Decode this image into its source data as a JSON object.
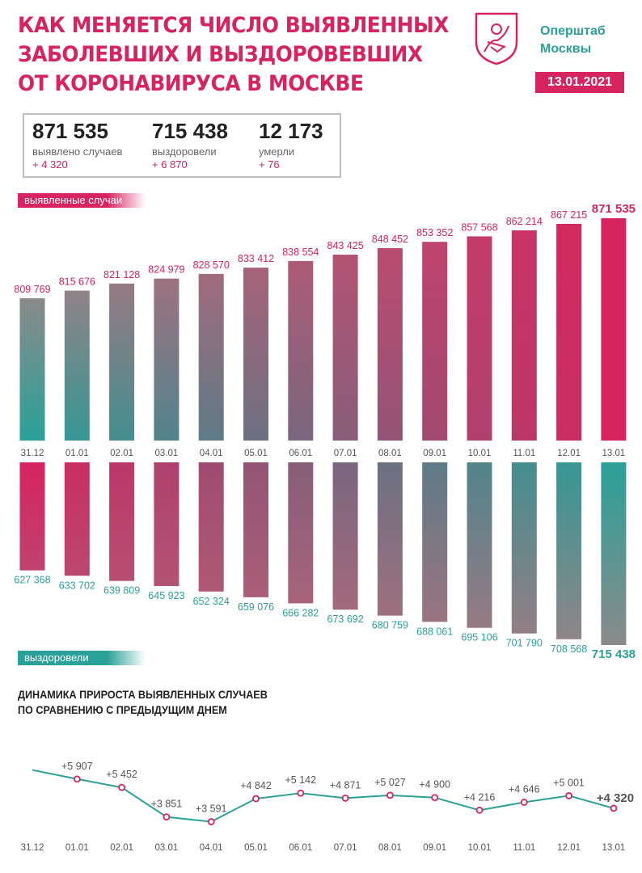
{
  "header": {
    "title_lines": [
      "Как меняется число выявленных",
      "заболевших и выздоровевших",
      "от коронавируса в Москве"
    ],
    "brand_lines": [
      "Оперштаб",
      "Москвы"
    ],
    "date": "13.01.2021",
    "emblem": "moscow-coat-of-arms-icon"
  },
  "stats": {
    "cases": {
      "value": "871 535",
      "label": "выявлено случаев",
      "delta": "+ 4 320"
    },
    "recovered": {
      "value": "715 438",
      "label": "выздоровели",
      "delta": "+ 6 870"
    },
    "deaths": {
      "value": "12 173",
      "label": "умерли",
      "delta": "+ 76"
    }
  },
  "labels": {
    "cases_pill": "выявленные случаи",
    "recovered_pill": "выздоровели",
    "dynamics_lines": [
      "Динамика прироста выявленных случаев",
      "по сравнению с предыдущим днем"
    ]
  },
  "colors": {
    "pink": "#d6245f",
    "teal": "#2aa198",
    "grey": "#8a8a8a"
  },
  "chart_data": [
    {
      "type": "bar",
      "categories": [
        "31.12",
        "01.01",
        "02.01",
        "03.01",
        "04.01",
        "05.01",
        "06.01",
        "07.01",
        "08.01",
        "09.01",
        "10.01",
        "11.01",
        "12.01",
        "13.01"
      ],
      "series": [
        {
          "name": "выявленные случаи",
          "values": [
            809769,
            815676,
            821128,
            824979,
            828570,
            833412,
            838554,
            843425,
            848452,
            853352,
            857568,
            862214,
            867215,
            871535
          ]
        }
      ],
      "value_labels": [
        "809 769",
        "815 676",
        "821 128",
        "824 979",
        "828 570",
        "833 412",
        "838 554",
        "843 425",
        "848 452",
        "853 352",
        "857 568",
        "862 214",
        "867 215",
        "871 535"
      ]
    },
    {
      "type": "bar",
      "categories": [
        "31.12",
        "01.01",
        "02.01",
        "03.01",
        "04.01",
        "05.01",
        "06.01",
        "07.01",
        "08.01",
        "09.01",
        "10.01",
        "11.01",
        "12.01",
        "13.01"
      ],
      "series": [
        {
          "name": "выздоровели",
          "values": [
            627368,
            633702,
            639809,
            645923,
            652324,
            659076,
            666282,
            673692,
            680759,
            688061,
            695106,
            701790,
            708568,
            715438
          ]
        }
      ],
      "value_labels": [
        "627 368",
        "633 702",
        "639 809",
        "645 923",
        "652 324",
        "659 076",
        "666 282",
        "673 692",
        "680 759",
        "688 061",
        "695 106",
        "701 790",
        "708 568",
        "715 438"
      ]
    },
    {
      "type": "line",
      "title": "Динамика прироста выявленных случаев по сравнению с предыдущим днем",
      "categories": [
        "31.12",
        "01.01",
        "02.01",
        "03.01",
        "04.01",
        "05.01",
        "06.01",
        "07.01",
        "08.01",
        "09.01",
        "10.01",
        "11.01",
        "12.01",
        "13.01"
      ],
      "values": [
        6400,
        5907,
        5452,
        3851,
        3591,
        4842,
        5142,
        4871,
        5027,
        4900,
        4216,
        4646,
        5001,
        4320
      ],
      "value_labels": [
        "",
        "+5 907",
        "+5 452",
        "+3 851",
        "+3 591",
        "+4 842",
        "+5 142",
        "+4 871",
        "+5 027",
        "+4 900",
        "+4 216",
        "+4 646",
        "+5 001",
        "+4 320"
      ]
    }
  ]
}
